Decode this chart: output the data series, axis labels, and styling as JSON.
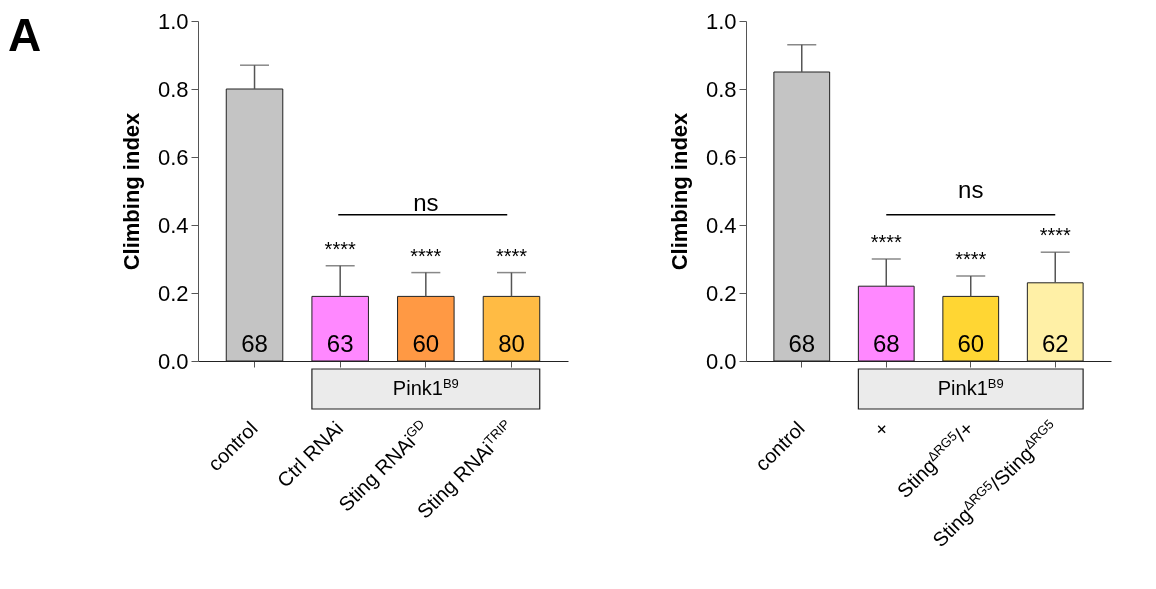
{
  "chart_data": [
    {
      "type": "bar",
      "title": "A",
      "ylabel": "Climbing index",
      "categories": [
        "control",
        "Ctrl RNAi",
        "Sting RNAi$^{GD}$",
        "Sting RNAi$^{TRIP}$"
      ],
      "values": [
        0.8,
        0.19,
        0.19,
        0.19
      ],
      "errors": [
        [
          0.8,
          0.87
        ],
        [
          0.19,
          0.28
        ],
        [
          0.19,
          0.26
        ],
        [
          0.19,
          0.26
        ]
      ],
      "colors": [
        "#c4c4c4",
        "#ff88ff",
        "#ff9944",
        "#ffbb44"
      ],
      "ylim": [
        0,
        1
      ],
      "yticks": [
        {
          "value": 0,
          "label": "0.0"
        },
        {
          "value": 0.2,
          "label": "0.2"
        },
        {
          "value": 0.4,
          "label": "0.4"
        },
        {
          "value": 0.6,
          "label": "0.6"
        },
        {
          "value": 0.8,
          "label": "0.8"
        },
        {
          "value": 1,
          "label": "1.0"
        }
      ],
      "grid": false,
      "annotations": [
        {
          "text": "68",
          "x": "control",
          "y": 0
        },
        {
          "text": "63",
          "x": "Ctrl RNAi",
          "y": 0
        },
        {
          "text": "60",
          "x": "Sting RNAi$^{GD}$",
          "y": 0
        },
        {
          "text": "80",
          "x": "Sting RNAi$^{TRIP}$",
          "y": 0
        },
        "****",
        "****",
        "****",
        "ns",
        "Pink1$^{B9}$"
      ]
    },
    {
      "type": "bar",
      "ylabel": "Climbing index",
      "categories": [
        "control",
        "+",
        "Sting$^{ΔRG5}$/+",
        "Sting$^{ΔRG5}$/Sting$^{ΔRG5}$"
      ],
      "values": [
        0.85,
        0.22,
        0.19,
        0.23
      ],
      "errors": [
        [
          0.85,
          0.93
        ],
        [
          0.22,
          0.3
        ],
        [
          0.19,
          0.25
        ],
        [
          0.23,
          0.32
        ]
      ],
      "colors": [
        "#c4c4c4",
        "#ff88ff",
        "#ffd633",
        "#fff0a6"
      ],
      "ylim": [
        0,
        1
      ],
      "yticks": [
        {
          "value": 0,
          "label": "0.0"
        },
        {
          "value": 0.2,
          "label": "0.2"
        },
        {
          "value": 0.4,
          "label": "0.4"
        },
        {
          "value": 0.6,
          "label": "0.6"
        },
        {
          "value": 0.8,
          "label": "0.8"
        },
        {
          "value": 1,
          "label": "1.0"
        }
      ],
      "grid": false,
      "annotations": [
        {
          "text": "68",
          "x": "control",
          "y": 0
        },
        {
          "text": "68",
          "x": "+",
          "y": 0
        },
        {
          "text": "60",
          "x": "Sting$^{ΔRG5}$/+",
          "y": 0
        },
        {
          "text": "62",
          "x": "Sting$^{ΔRG5}$/Sting$^{ΔRG5}$",
          "y": 0
        },
        "****",
        "****",
        "****",
        "ns",
        "Pink1$^{B9}$"
      ]
    }
  ]
}
